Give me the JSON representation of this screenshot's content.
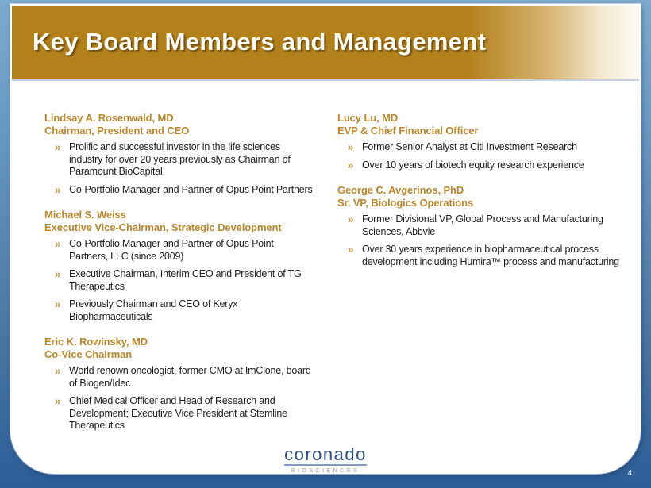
{
  "header": {
    "title": "Key Board Members and Management"
  },
  "bullet_char": "»",
  "columns": [
    {
      "sections": [
        {
          "name": "Lindsay A. Rosenwald, MD",
          "role": "Chairman, President and CEO",
          "bullets": [
            "Prolific and successful investor in the life sciences industry for over 20 years previously as Chairman of Paramount BioCapital",
            "Co-Portfolio Manager and Partner of Opus Point Partners"
          ]
        },
        {
          "name": "Michael S. Weiss",
          "role": "Executive Vice-Chairman, Strategic Development",
          "bullets": [
            "Co-Portfolio Manager and Partner of Opus Point Partners, LLC (since 2009)",
            "Executive Chairman, Interim CEO and President of TG Therapeutics",
            "Previously Chairman and CEO of Keryx Biopharmaceuticals"
          ]
        },
        {
          "name": "Eric K. Rowinsky, MD",
          "role": "Co-Vice Chairman",
          "bullets": [
            "World renown oncologist, former CMO at ImClone, board of Biogen/Idec",
            "Chief Medical Officer and Head of Research and Development; Executive Vice President at Stemline Therapeutics"
          ]
        }
      ]
    },
    {
      "sections": [
        {
          "name": "Lucy Lu, MD",
          "role": "EVP & Chief Financial Officer",
          "bullets": [
            "Former Senior Analyst at Citi Investment Research",
            "Over 10 years of biotech equity research experience"
          ]
        },
        {
          "name": "George C. Avgerinos, PhD",
          "role": "Sr. VP, Biologics Operations",
          "bullets": [
            "Former Divisional VP, Global Process and Manufacturing Sciences, Abbvie",
            "Over 30 years experience in biopharmaceutical process development including Humira™ process and manufacturing"
          ]
        }
      ]
    }
  ],
  "footer": {
    "logo_text": "coronado",
    "logo_subtitle": "BIOSCIENCES",
    "page_number": "4"
  },
  "colors": {
    "header_gold": "#B3811C",
    "heading_text": "#B8872E",
    "bullet_marker": "#C59A4D",
    "body_text": "#212121",
    "background_top": "#7DA9CD",
    "background_bottom": "#2D5D98",
    "logo_blue": "#2C4D7E"
  }
}
